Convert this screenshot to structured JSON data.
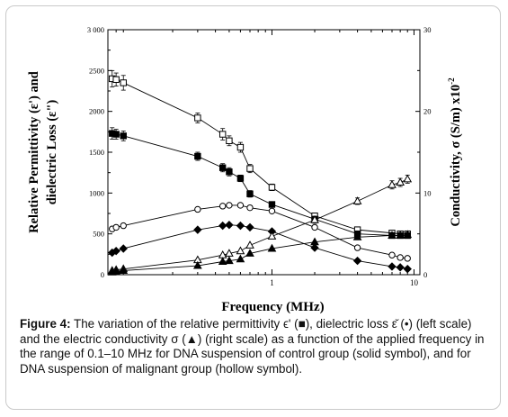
{
  "chart_data": {
    "type": "scatter",
    "x_scale": "log",
    "xlim": [
      0.07,
      11
    ],
    "ylim": [
      0,
      3000
    ],
    "y2lim": [
      0,
      30
    ],
    "xlabel": "Frequency (MHz)",
    "ylabel": [
      "Relative Permittivity (ε') and",
      "dielectric Loss (ε\")"
    ],
    "y2label": "Conductivity, σ (S/m) x10",
    "y2label_exp": "-2",
    "x_ticks": [
      1,
      10
    ],
    "x_tick_labels": [
      "1",
      "10"
    ],
    "y_ticks": [
      0,
      500,
      1000,
      1500,
      2000,
      2500,
      3000
    ],
    "y_tick_labels": [
      "0",
      "500",
      "1000",
      "1500",
      "2000",
      "2500",
      "3 000"
    ],
    "y2_ticks": [
      0,
      10,
      20,
      30
    ],
    "y2_tick_labels": [
      "0",
      "10",
      "20",
      "30"
    ],
    "series": [
      {
        "marker": "square-open",
        "axis": "left",
        "x": [
          0.075,
          0.08,
          0.09,
          0.3,
          0.45,
          0.5,
          0.6,
          0.7,
          1.0,
          2.0,
          4.0,
          7.0,
          8.0,
          9.0
        ],
        "y": [
          2400,
          2390,
          2350,
          1920,
          1720,
          1640,
          1560,
          1300,
          1070,
          720,
          550,
          510,
          500,
          500
        ],
        "err": [
          100,
          80,
          90,
          60,
          70,
          60,
          60,
          50,
          40,
          0,
          0,
          0,
          0,
          0
        ]
      },
      {
        "marker": "square-filled",
        "axis": "left",
        "x": [
          0.075,
          0.08,
          0.09,
          0.3,
          0.45,
          0.5,
          0.6,
          0.7,
          1.0,
          2.0,
          4.0,
          7.0,
          8.0,
          9.0
        ],
        "y": [
          1730,
          1720,
          1700,
          1450,
          1310,
          1260,
          1180,
          990,
          860,
          680,
          500,
          480,
          480,
          480
        ],
        "err": [
          70,
          60,
          60,
          50,
          50,
          50,
          40,
          40,
          30,
          0,
          0,
          0,
          0,
          0
        ]
      },
      {
        "marker": "circle-open",
        "axis": "left",
        "x": [
          0.075,
          0.08,
          0.09,
          0.3,
          0.45,
          0.5,
          0.6,
          0.7,
          1.0,
          2.0,
          4.0,
          7.0,
          8.0,
          9.0
        ],
        "y": [
          560,
          580,
          600,
          800,
          840,
          850,
          850,
          820,
          780,
          580,
          330,
          240,
          210,
          200
        ]
      },
      {
        "marker": "diamond-filled",
        "axis": "left",
        "x": [
          0.075,
          0.08,
          0.09,
          0.3,
          0.45,
          0.5,
          0.6,
          0.7,
          1.0,
          2.0,
          4.0,
          7.0,
          8.0,
          9.0
        ],
        "y": [
          270,
          290,
          320,
          550,
          600,
          610,
          600,
          580,
          530,
          330,
          170,
          100,
          90,
          70
        ]
      },
      {
        "marker": "triangle-open",
        "axis": "right",
        "x": [
          0.075,
          0.08,
          0.09,
          0.3,
          0.45,
          0.5,
          0.6,
          0.7,
          1.0,
          2.0,
          4.0,
          7.0,
          8.0,
          9.0
        ],
        "y": [
          0.5,
          0.6,
          0.7,
          1.8,
          2.4,
          2.6,
          2.9,
          3.6,
          4.7,
          6.7,
          9.0,
          11.0,
          11.3,
          11.7
        ],
        "err": [
          0,
          0,
          0,
          0,
          0,
          0,
          0,
          0,
          0,
          0.4,
          0.4,
          0.5,
          0.5,
          0.5
        ]
      },
      {
        "marker": "triangle-filled",
        "axis": "right",
        "x": [
          0.075,
          0.08,
          0.09,
          0.3,
          0.45,
          0.5,
          0.6,
          0.7,
          1.0,
          2.0,
          4.0,
          7.0,
          8.0,
          9.0
        ],
        "y": [
          0.3,
          0.4,
          0.5,
          1.1,
          1.6,
          1.7,
          1.9,
          2.6,
          3.2,
          4.0,
          4.6,
          4.8,
          4.8,
          4.9
        ]
      }
    ]
  },
  "caption": {
    "figure_label": "Figure 4:",
    "text": " The variation of the relative permittivity ϵ' (■), dielectric loss ε̆ (•) (left scale) and the electric conductivity σ (▲) (right scale) as a function of the applied frequency in the range of 0.1–10 MHz for DNA suspension of control group (solid symbol), and for DNA suspension of malignant group (hollow symbol)."
  }
}
